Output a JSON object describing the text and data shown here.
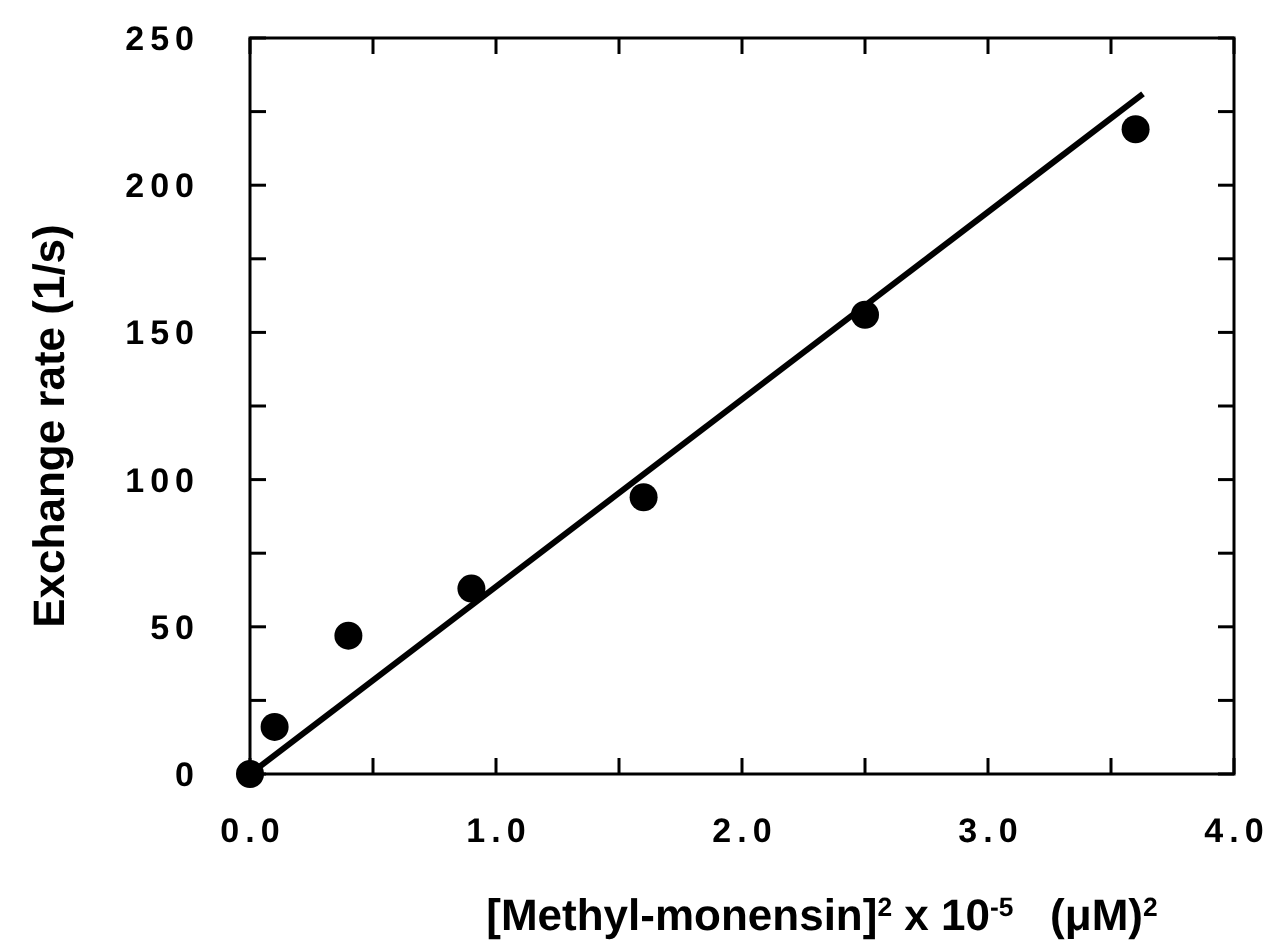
{
  "chart_data": {
    "type": "scatter",
    "xlabel": "[Methyl-monensin]$^{2}$ x 10$^{-5}$   (μM)$^{2}$",
    "ylabel": "Exchange rate (1/s)",
    "xlim": [
      0,
      4
    ],
    "ylim": [
      0,
      250
    ],
    "xticks": [
      {
        "value": 0,
        "label": "0.0"
      },
      {
        "value": 0.5,
        "label": null
      },
      {
        "value": 1,
        "label": "1.0"
      },
      {
        "value": 1.5,
        "label": null
      },
      {
        "value": 2,
        "label": "2.0"
      },
      {
        "value": 2.5,
        "label": null
      },
      {
        "value": 3,
        "label": "3.0"
      },
      {
        "value": 3.5,
        "label": null
      },
      {
        "value": 4,
        "label": "4.0"
      }
    ],
    "yticks": [
      0,
      {
        "value": 25,
        "label": null
      },
      50,
      {
        "value": 75,
        "label": null
      },
      100,
      {
        "value": 125,
        "label": null
      },
      150,
      {
        "value": 175,
        "label": null
      },
      200,
      {
        "value": 225,
        "label": null
      },
      250
    ],
    "marker": "circle",
    "grid": false,
    "series": [
      {
        "color": "#000000",
        "x": [
          0,
          0.1,
          0.4,
          0.9,
          1.6,
          2.5,
          3.6
        ],
        "values": [
          0,
          16,
          47,
          63,
          94,
          156,
          219
        ]
      },
      {
        "type": "line",
        "color": "#000000",
        "x": [
          0,
          3.63
        ],
        "values": [
          0,
          231
        ],
        "marker": "none",
        "line_style": "solid"
      }
    ]
  }
}
